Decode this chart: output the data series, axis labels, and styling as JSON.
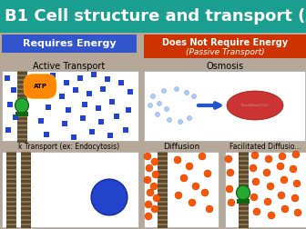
{
  "title": "B1 Cell structure and transport (AQA)",
  "title_bg": "#1a9e8f",
  "title_color": "#ffffff",
  "title_fontsize": 13,
  "bg_color": "#b5a898",
  "left_label": "Requires Energy",
  "left_label_bg": "#3355cc",
  "left_label_color": "#ffffff",
  "right_label_line1": "Does Not Require Energy",
  "right_label_line2": "(Passive Transport)",
  "right_label_bg": "#cc3300",
  "right_label_color": "#ffffff",
  "active_transport_title": "Active Transport",
  "bulk_transport_title": "k Transport (ex: Endocytosis)",
  "osmosis_title": "Osmosis",
  "diffusion_title": "Diffusion",
  "facilitated_title": "Facilitated Diffusio...",
  "box_bg": "#ffffff",
  "membrane_color": "#8B7355",
  "membrane_stripe": "#5c4a2a",
  "blue_square_color": "#2244cc",
  "orange_dot_color": "#ff5500",
  "green_circle_color": "#22aa33",
  "atp_color": "#ff6600",
  "red_cell_color": "#cc3333",
  "blue_arrow_color": "#2255cc",
  "water_color": "#aaccff",
  "vesicle_color": "#2244cc"
}
